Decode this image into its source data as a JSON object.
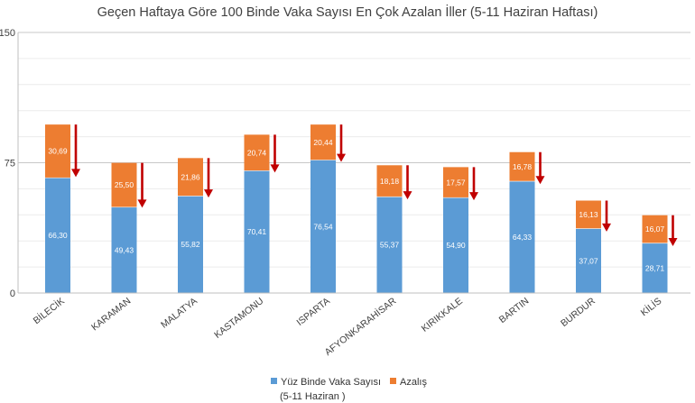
{
  "chart_data": {
    "type": "bar",
    "stacked": true,
    "title": "Geçen Haftaya Göre 100 Binde Vaka Sayısı En Çok Azalan İller (5-11 Haziran Haftası)",
    "categories": [
      "BİLECİK",
      "KARAMAN",
      "MALATYA",
      "KASTAMONU",
      "ISPARTA",
      "AFYONKARAHİSAR",
      "KIRIKKALE",
      "BARTIN",
      "BURDUR",
      "KİLİS"
    ],
    "series": [
      {
        "name": "Yüz Binde Vaka Sayısı (5-11 Haziran )",
        "color": "#5b9bd5",
        "values": [
          66.3,
          49.43,
          55.82,
          70.41,
          76.54,
          55.37,
          54.9,
          64.33,
          37.07,
          28.71
        ],
        "labels": [
          "66,30",
          "49,43",
          "55,82",
          "70,41",
          "76,54",
          "55,37",
          "54,90",
          "64,33",
          "37,07",
          "28,71"
        ]
      },
      {
        "name": "Azalış",
        "color": "#ed7d31",
        "values": [
          30.69,
          25.5,
          21.86,
          20.74,
          20.44,
          18.18,
          17.57,
          16.78,
          16.13,
          16.07
        ],
        "labels": [
          "30,69",
          "25,50",
          "21,86",
          "20,74",
          "20,44",
          "18,18",
          "17,57",
          "16,78",
          "16,13",
          "16,07"
        ]
      }
    ],
    "ylim": [
      0,
      150
    ],
    "yticks": [
      0,
      75,
      150
    ],
    "grid": true,
    "legend": "bottom",
    "annotations": "red downward arrow beside each bar",
    "arrow_color": "#c00000"
  },
  "legend": {
    "item1_line1": "Yüz Binde Vaka Sayısı",
    "item1_line2": "(5-11 Haziran )",
    "item2": "Azalış"
  }
}
